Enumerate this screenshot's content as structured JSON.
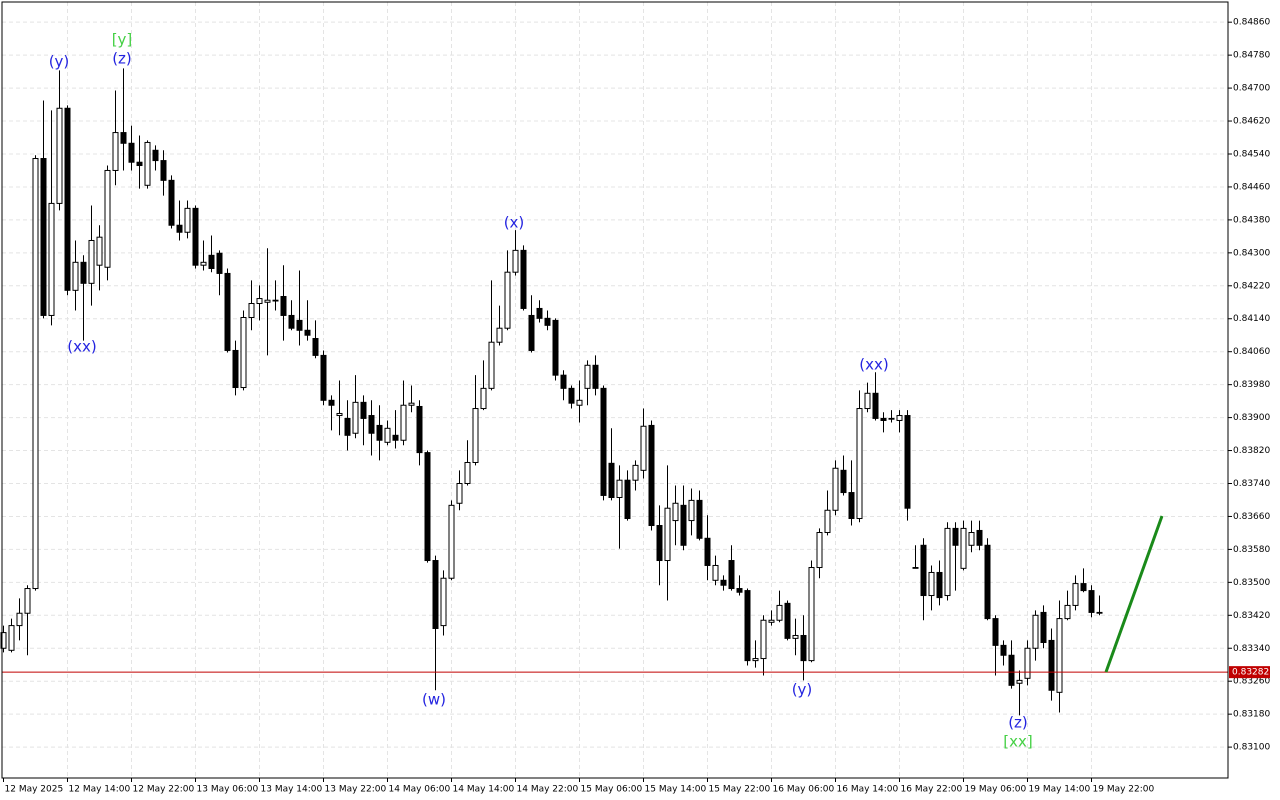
{
  "chart_data": {
    "type": "candlestick",
    "ylim": [
      0.83025,
      0.84909
    ],
    "yticks": [
      {
        "value": 0.8486,
        "label": "0.84860"
      },
      {
        "value": 0.8478,
        "label": "0.84780"
      },
      {
        "value": 0.847,
        "label": "0.84700"
      },
      {
        "value": 0.8462,
        "label": "0.84620"
      },
      {
        "value": 0.8454,
        "label": "0.84540"
      },
      {
        "value": 0.8446,
        "label": "0.84460"
      },
      {
        "value": 0.8438,
        "label": "0.84380"
      },
      {
        "value": 0.843,
        "label": "0.84300"
      },
      {
        "value": 0.8422,
        "label": "0.84220"
      },
      {
        "value": 0.8414,
        "label": "0.84140"
      },
      {
        "value": 0.8406,
        "label": "0.84060"
      },
      {
        "value": 0.8398,
        "label": "0.83980"
      },
      {
        "value": 0.839,
        "label": "0.83900"
      },
      {
        "value": 0.8382,
        "label": "0.83820"
      },
      {
        "value": 0.8374,
        "label": "0.83740"
      },
      {
        "value": 0.8366,
        "label": "0.83660"
      },
      {
        "value": 0.8358,
        "label": "0.83580"
      },
      {
        "value": 0.835,
        "label": "0.83500"
      },
      {
        "value": 0.8342,
        "label": "0.83420"
      },
      {
        "value": 0.8334,
        "label": "0.83340"
      },
      {
        "value": 0.8326,
        "label": "0.83260"
      },
      {
        "value": 0.8318,
        "label": "0.83180"
      },
      {
        "value": 0.831,
        "label": "0.83100"
      }
    ],
    "grid": true,
    "up_color": "#ffffff",
    "down_color": "#000000",
    "price_line": {
      "value": 0.83282,
      "label": "0.83282",
      "color": "#c00000"
    },
    "categories": [
      "12 May 2025",
      null,
      null,
      null,
      null,
      null,
      null,
      null,
      "12 May 14:00",
      null,
      null,
      null,
      null,
      null,
      null,
      null,
      "12 May 22:00",
      null,
      null,
      null,
      null,
      null,
      null,
      null,
      "13 May 06:00",
      null,
      null,
      null,
      null,
      null,
      null,
      null,
      "13 May 14:00",
      null,
      null,
      null,
      null,
      null,
      null,
      null,
      "13 May 22:00",
      null,
      null,
      null,
      null,
      null,
      null,
      null,
      "14 May 06:00",
      null,
      null,
      null,
      null,
      null,
      null,
      null,
      "14 May 14:00",
      null,
      null,
      null,
      null,
      null,
      null,
      null,
      "14 May 22:00",
      null,
      null,
      null,
      null,
      null,
      null,
      null,
      "15 May 06:00",
      null,
      null,
      null,
      null,
      null,
      null,
      null,
      "15 May 14:00",
      null,
      null,
      null,
      null,
      null,
      null,
      null,
      "15 May 22:00",
      null,
      null,
      null,
      null,
      null,
      null,
      null,
      "16 May 06:00",
      null,
      null,
      null,
      null,
      null,
      null,
      null,
      "16 May 14:00",
      null,
      null,
      null,
      null,
      null,
      null,
      null,
      "16 May 22:00",
      null,
      null,
      null,
      null,
      null,
      null,
      null,
      "19 May 06:00",
      null,
      null,
      null,
      null,
      null,
      null,
      null,
      "19 May 14:00",
      null,
      null,
      null,
      null,
      null,
      null,
      null,
      "19 May 22:00",
      null
    ],
    "ohlc": [
      [
        0.8334,
        0.83395,
        0.8333,
        0.83378
      ],
      [
        0.83335,
        0.83412,
        0.8333,
        0.83395
      ],
      [
        0.83395,
        0.83461,
        0.83359,
        0.83425
      ],
      [
        0.83425,
        0.83493,
        0.83323,
        0.83485
      ],
      [
        0.83485,
        0.84537,
        0.8348,
        0.84529
      ],
      [
        0.84529,
        0.8467,
        0.84141,
        0.84148
      ],
      [
        0.84148,
        0.84646,
        0.84124,
        0.8442
      ],
      [
        0.8442,
        0.84743,
        0.84403,
        0.84651
      ],
      [
        0.84651,
        0.84658,
        0.84197,
        0.84209
      ],
      [
        0.84209,
        0.8433,
        0.8416,
        0.84277
      ],
      [
        0.84277,
        0.84294,
        0.84087,
        0.84226
      ],
      [
        0.84226,
        0.84415,
        0.84172,
        0.8433
      ],
      [
        0.8427,
        0.84367,
        0.84209,
        0.84338
      ],
      [
        0.84265,
        0.84512,
        0.84233,
        0.845
      ],
      [
        0.845,
        0.84694,
        0.84464,
        0.84592
      ],
      [
        0.84592,
        0.84748,
        0.845,
        0.84566
      ],
      [
        0.84566,
        0.84609,
        0.845,
        0.8452
      ],
      [
        0.8452,
        0.84585,
        0.84456,
        0.84512
      ],
      [
        0.84464,
        0.84573,
        0.84456,
        0.84568
      ],
      [
        0.84549,
        0.84561,
        0.845,
        0.84524
      ],
      [
        0.84524,
        0.84549,
        0.84439,
        0.84476
      ],
      [
        0.84476,
        0.84488,
        0.84359,
        0.84367
      ],
      [
        0.84367,
        0.84427,
        0.8433,
        0.8435
      ],
      [
        0.8435,
        0.84427,
        0.84335,
        0.84408
      ],
      [
        0.84408,
        0.84415,
        0.84262,
        0.8427
      ],
      [
        0.8427,
        0.8433,
        0.84257,
        0.84277
      ],
      [
        0.84294,
        0.84342,
        0.84253,
        0.84262
      ],
      [
        0.84299,
        0.84306,
        0.84197,
        0.8425
      ],
      [
        0.8425,
        0.84262,
        0.84058,
        0.84063
      ],
      [
        0.84063,
        0.84087,
        0.83954,
        0.83973
      ],
      [
        0.83973,
        0.8416,
        0.83966,
        0.84143
      ],
      [
        0.84143,
        0.84233,
        0.84112,
        0.84177
      ],
      [
        0.84177,
        0.84221,
        0.84136,
        0.84189
      ],
      [
        0.8418,
        0.84311,
        0.84051,
        0.84185
      ],
      [
        0.84185,
        0.84233,
        0.8416,
        0.84185
      ],
      [
        0.84194,
        0.8427,
        0.84087,
        0.84148
      ],
      [
        0.84148,
        0.84185,
        0.84112,
        0.84117
      ],
      [
        0.84136,
        0.84257,
        0.84075,
        0.84112
      ],
      [
        0.84112,
        0.84185,
        0.84087,
        0.841
      ],
      [
        0.84092,
        0.84136,
        0.84044,
        0.84051
      ],
      [
        0.84051,
        0.84063,
        0.8393,
        0.83942
      ],
      [
        0.83942,
        0.83954,
        0.83869,
        0.8393
      ],
      [
        0.83905,
        0.8399,
        0.83857,
        0.8391
      ],
      [
        0.83898,
        0.83942,
        0.8382,
        0.83857
      ],
      [
        0.83862,
        0.84003,
        0.8385,
        0.83937
      ],
      [
        0.83937,
        0.83954,
        0.83833,
        0.83898
      ],
      [
        0.83905,
        0.83942,
        0.83808,
        0.83862
      ],
      [
        0.83881,
        0.8393,
        0.83796,
        0.83845
      ],
      [
        0.8384,
        0.83893,
        0.83833,
        0.83874
      ],
      [
        0.83857,
        0.83918,
        0.83825,
        0.83845
      ],
      [
        0.83845,
        0.8399,
        0.83833,
        0.8393
      ],
      [
        0.8393,
        0.83978,
        0.83913,
        0.83935
      ],
      [
        0.83927,
        0.83942,
        0.83784,
        0.83815
      ],
      [
        0.83815,
        0.8382,
        0.83548,
        0.83553
      ],
      [
        0.83553,
        0.83565,
        0.83238,
        0.83388
      ],
      [
        0.83395,
        0.83529,
        0.83371,
        0.8351
      ],
      [
        0.8351,
        0.83699,
        0.83505,
        0.83687
      ],
      [
        0.83692,
        0.83772,
        0.83675,
        0.8374
      ],
      [
        0.8374,
        0.83845,
        0.83735,
        0.83791
      ],
      [
        0.83791,
        0.84003,
        0.83784,
        0.83922
      ],
      [
        0.83922,
        0.84039,
        0.83918,
        0.83971
      ],
      [
        0.83971,
        0.84233,
        0.83966,
        0.84083
      ],
      [
        0.84083,
        0.84172,
        0.84075,
        0.84117
      ],
      [
        0.84117,
        0.84306,
        0.84112,
        0.84253
      ],
      [
        0.84253,
        0.84355,
        0.84245,
        0.84306
      ],
      [
        0.84306,
        0.84318,
        0.8416,
        0.84165
      ],
      [
        0.84148,
        0.84197,
        0.84058,
        0.84063
      ],
      [
        0.84165,
        0.84185,
        0.84131,
        0.84141
      ],
      [
        0.84141,
        0.8416,
        0.84112,
        0.84124
      ],
      [
        0.84136,
        0.84141,
        0.8399,
        0.84003
      ],
      [
        0.84003,
        0.84015,
        0.83942,
        0.83971
      ],
      [
        0.83971,
        0.83978,
        0.83922,
        0.83935
      ],
      [
        0.8393,
        0.8399,
        0.83888,
        0.83942
      ],
      [
        0.83971,
        0.84039,
        0.8393,
        0.84027
      ],
      [
        0.84027,
        0.84051,
        0.83954,
        0.83971
      ],
      [
        0.83971,
        0.83978,
        0.83699,
        0.83711
      ],
      [
        0.83789,
        0.83874,
        0.83699,
        0.83706
      ],
      [
        0.83706,
        0.83784,
        0.83582,
        0.83748
      ],
      [
        0.83748,
        0.83772,
        0.8365,
        0.83655
      ],
      [
        0.83748,
        0.83796,
        0.83723,
        0.83784
      ],
      [
        0.83772,
        0.83922,
        0.83752,
        0.83879
      ],
      [
        0.83881,
        0.83893,
        0.83626,
        0.83638
      ],
      [
        0.83638,
        0.83687,
        0.83493,
        0.83553
      ],
      [
        0.83553,
        0.83784,
        0.83456,
        0.8368
      ],
      [
        0.8365,
        0.83735,
        0.8359,
        0.83692
      ],
      [
        0.83687,
        0.83735,
        0.83578,
        0.8359
      ],
      [
        0.8365,
        0.83728,
        0.83614,
        0.83699
      ],
      [
        0.83699,
        0.83723,
        0.83602,
        0.83607
      ],
      [
        0.83607,
        0.83663,
        0.83505,
        0.83541
      ],
      [
        0.83505,
        0.83565,
        0.83493,
        0.83541
      ],
      [
        0.83505,
        0.83517,
        0.8348,
        0.83493
      ],
      [
        0.83553,
        0.8359,
        0.8348,
        0.83485
      ],
      [
        0.83485,
        0.83517,
        0.83468,
        0.83476
      ],
      [
        0.8348,
        0.83485,
        0.83298,
        0.8331
      ],
      [
        0.8331,
        0.83359,
        0.83293,
        0.83315
      ],
      [
        0.83315,
        0.8342,
        0.83274,
        0.83408
      ],
      [
        0.83403,
        0.83432,
        0.83395,
        0.83408
      ],
      [
        0.83408,
        0.8348,
        0.83403,
        0.83444
      ],
      [
        0.83449,
        0.83456,
        0.83359,
        0.83364
      ],
      [
        0.83364,
        0.83412,
        0.83323,
        0.83371
      ],
      [
        0.83371,
        0.8342,
        0.83262,
        0.8331
      ],
      [
        0.8331,
        0.83553,
        0.83306,
        0.83536
      ],
      [
        0.83536,
        0.83631,
        0.8351,
        0.83621
      ],
      [
        0.83621,
        0.83723,
        0.83614,
        0.83675
      ],
      [
        0.83675,
        0.83796,
        0.83663,
        0.83777
      ],
      [
        0.83772,
        0.83808,
        0.83711,
        0.83718
      ],
      [
        0.83718,
        0.83796,
        0.83638,
        0.83655
      ],
      [
        0.83655,
        0.83966,
        0.83646,
        0.83922
      ],
      [
        0.83922,
        0.83985,
        0.83913,
        0.83959
      ],
      [
        0.83959,
        0.8401,
        0.83893,
        0.83898
      ],
      [
        0.83898,
        0.83913,
        0.83864,
        0.83893
      ],
      [
        0.83898,
        0.83918,
        0.83888,
        0.83898
      ],
      [
        0.83893,
        0.83918,
        0.83864,
        0.83905
      ],
      [
        0.83905,
        0.83918,
        0.8365,
        0.8368
      ],
      [
        0.83536,
        0.8359,
        0.83534,
        0.83536
      ],
      [
        0.8359,
        0.83607,
        0.83408,
        0.83468
      ],
      [
        0.83468,
        0.83541,
        0.83432,
        0.83524
      ],
      [
        0.83524,
        0.83553,
        0.83444,
        0.83463
      ],
      [
        0.83468,
        0.83646,
        0.83456,
        0.83631
      ],
      [
        0.83631,
        0.83646,
        0.8348,
        0.8359
      ],
      [
        0.83534,
        0.8365,
        0.83529,
        0.83631
      ],
      [
        0.8359,
        0.8365,
        0.83573,
        0.83621
      ],
      [
        0.83626,
        0.8365,
        0.83578,
        0.8359
      ],
      [
        0.8359,
        0.83607,
        0.83408,
        0.83412
      ],
      [
        0.83412,
        0.8342,
        0.83274,
        0.83347
      ],
      [
        0.83347,
        0.83359,
        0.83298,
        0.83323
      ],
      [
        0.83323,
        0.83359,
        0.83242,
        0.8325
      ],
      [
        0.83255,
        0.83286,
        0.83177,
        0.83262
      ],
      [
        0.83267,
        0.83359,
        0.8325,
        0.8334
      ],
      [
        0.8334,
        0.83432,
        0.8331,
        0.8342
      ],
      [
        0.83427,
        0.83444,
        0.8334,
        0.83354
      ],
      [
        0.83359,
        0.83388,
        0.83213,
        0.83238
      ],
      [
        0.83233,
        0.83456,
        0.83184,
        0.83412
      ],
      [
        0.83412,
        0.8348,
        0.83408,
        0.83444
      ],
      [
        0.83444,
        0.83517,
        0.83432,
        0.83497
      ],
      [
        0.83497,
        0.83534,
        0.83476,
        0.8348
      ],
      [
        0.8348,
        0.83493,
        0.83415,
        0.83427
      ],
      [
        0.83427,
        0.83468,
        0.8342,
        0.83427
      ]
    ],
    "annotations": [
      {
        "text": "(y)",
        "color": "#2424e0"
      },
      {
        "text": "[y]",
        "color": "#44d044"
      },
      {
        "text": "(z)",
        "color": "#2424e0"
      },
      {
        "text": "(xx)",
        "color": "#2424e0"
      },
      {
        "text": "(x)",
        "color": "#2424e0"
      },
      {
        "text": "(w)",
        "color": "#2424e0"
      },
      {
        "text": "(y)",
        "color": "#2424e0"
      },
      {
        "text": "(xx)",
        "color": "#2424e0"
      },
      {
        "text": "(z)",
        "color": "#2424e0"
      },
      {
        "text": "[xx]",
        "color": "#44d044"
      }
    ]
  }
}
